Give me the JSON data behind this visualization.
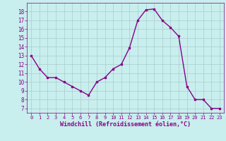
{
  "x": [
    0,
    1,
    2,
    3,
    4,
    5,
    6,
    7,
    8,
    9,
    10,
    11,
    12,
    13,
    14,
    15,
    16,
    17,
    18,
    19,
    20,
    21,
    22,
    23
  ],
  "y": [
    13,
    11.5,
    10.5,
    10.5,
    10,
    9.5,
    9,
    8.5,
    10,
    10.5,
    11.5,
    12,
    13.9,
    17,
    18.2,
    18.3,
    17,
    16.2,
    15.2,
    9.5,
    8,
    8,
    7,
    7
  ],
  "line_color": "#880088",
  "marker_color": "#880088",
  "bg_color": "#c8eeed",
  "grid_color": "#aacccc",
  "xlabel": "Windchill (Refroidissement éolien,°C)",
  "xlabel_color": "#880088",
  "tick_color": "#880088",
  "xlim": [
    -0.5,
    23.5
  ],
  "ylim": [
    6.5,
    19
  ],
  "yticks": [
    7,
    8,
    9,
    10,
    11,
    12,
    13,
    14,
    15,
    16,
    17,
    18
  ],
  "xticks": [
    0,
    1,
    2,
    3,
    4,
    5,
    6,
    7,
    8,
    9,
    10,
    11,
    12,
    13,
    14,
    15,
    16,
    17,
    18,
    19,
    20,
    21,
    22,
    23
  ]
}
